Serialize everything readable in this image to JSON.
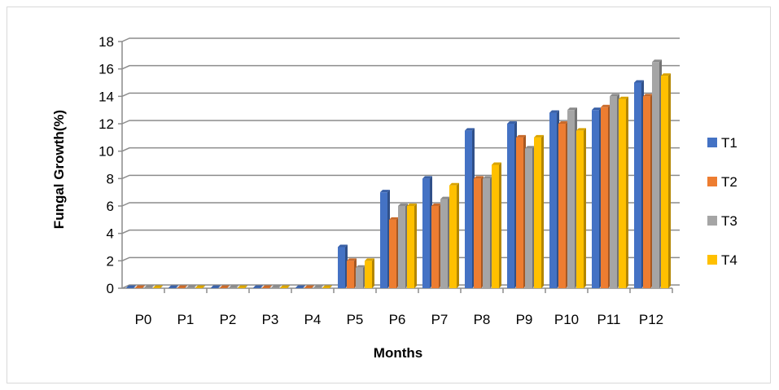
{
  "chart_data": {
    "type": "bar",
    "title": "",
    "xlabel": "Months",
    "ylabel": "Fungal Growth(%)",
    "ylim": [
      0,
      18
    ],
    "yticks": [
      0,
      2,
      4,
      6,
      8,
      10,
      12,
      14,
      16,
      18
    ],
    "grid": true,
    "legend_position": "right",
    "categories": [
      "P0",
      "P1",
      "P2",
      "P3",
      "P4",
      "P5",
      "P6",
      "P7",
      "P8",
      "P9",
      "P10",
      "P11",
      "P12"
    ],
    "series": [
      {
        "name": "T1",
        "color": "#4472C4",
        "values": [
          0,
          0,
          0,
          0,
          0,
          3,
          7,
          8,
          11.5,
          12,
          12.8,
          13,
          15
        ]
      },
      {
        "name": "T2",
        "color": "#ED7D31",
        "values": [
          0,
          0,
          0,
          0,
          0,
          2,
          5,
          6,
          8,
          11,
          12,
          13.2,
          14
        ]
      },
      {
        "name": "T3",
        "color": "#A5A5A5",
        "values": [
          0,
          0,
          0,
          0,
          0,
          1.5,
          6,
          6.5,
          8,
          10.2,
          13,
          14,
          16.5
        ]
      },
      {
        "name": "T4",
        "color": "#FFC000",
        "values": [
          0,
          0,
          0,
          0,
          0,
          2,
          6,
          7.5,
          9,
          11,
          11.5,
          13.8,
          15.5
        ]
      }
    ]
  }
}
